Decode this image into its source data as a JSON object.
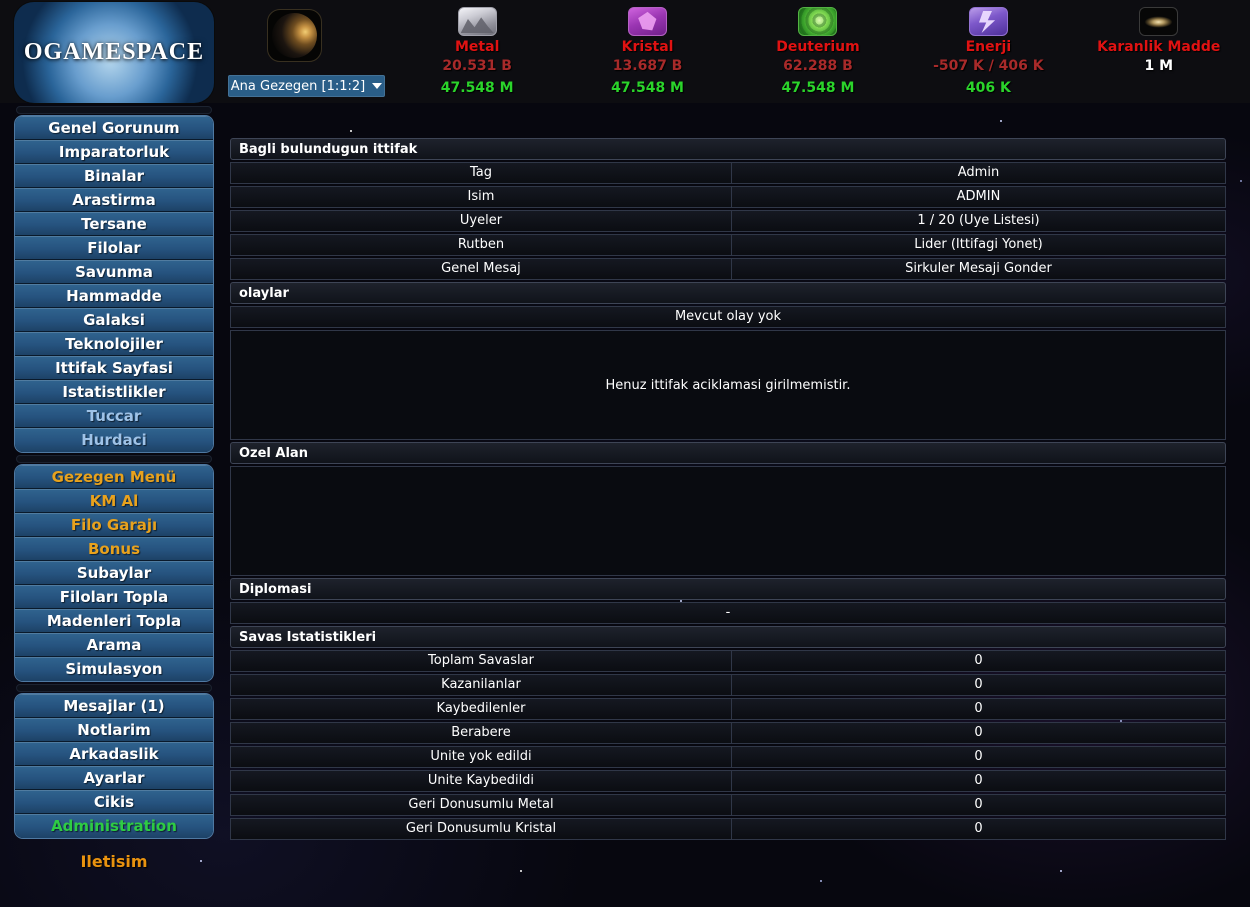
{
  "colors": {
    "resource_label_red": "#e01212",
    "resource_value_red": "#a82a2a",
    "resource_value_green": "#2bd42b",
    "sidebar_white": "#ffffff",
    "sidebar_lightblue": "#9fc3e8",
    "sidebar_orange": "#e8a21d",
    "sidebar_green": "#2ecc44",
    "footer_orange": "#e8920f"
  },
  "header": {
    "logo_text": "OGAMESPACE",
    "planet_select": {
      "value": "Ana Gezegen [1:1:2]"
    },
    "resources": [
      {
        "key": "metal",
        "icon": "metal-icon",
        "icon_class": "icon-metal",
        "name": "Metal",
        "value_red": "20.531 B",
        "value_green": "47.548 M"
      },
      {
        "key": "kristal",
        "icon": "crystal-icon",
        "icon_class": "icon-crystal",
        "name": "Kristal",
        "value_red": "13.687 B",
        "value_green": "47.548 M"
      },
      {
        "key": "deuterium",
        "icon": "deuterium-icon",
        "icon_class": "icon-deuterium",
        "name": "Deuterium",
        "value_red": "62.288 B",
        "value_green": "47.548 M"
      },
      {
        "key": "enerji",
        "icon": "energy-icon",
        "icon_class": "icon-energy",
        "name": "Enerji",
        "value_red": "-507 K / 406 K",
        "value_green": "406 K"
      },
      {
        "key": "karanlik-madde",
        "icon": "dark-matter-icon",
        "icon_class": "icon-dark",
        "name": "Karanlik Madde",
        "value_white": "1 M"
      }
    ]
  },
  "sidebar": {
    "groups": [
      {
        "items": [
          {
            "label": "Genel Gorunum",
            "color": "#ffffff"
          },
          {
            "label": "Imparatorluk",
            "color": "#ffffff"
          },
          {
            "label": "Binalar",
            "color": "#ffffff"
          },
          {
            "label": "Arastirma",
            "color": "#ffffff"
          },
          {
            "label": "Tersane",
            "color": "#ffffff"
          },
          {
            "label": "Filolar",
            "color": "#ffffff"
          },
          {
            "label": "Savunma",
            "color": "#ffffff"
          },
          {
            "label": "Hammadde",
            "color": "#ffffff"
          },
          {
            "label": "Galaksi",
            "color": "#ffffff"
          },
          {
            "label": "Teknolojiler",
            "color": "#ffffff"
          },
          {
            "label": "Ittifak Sayfasi",
            "color": "#ffffff"
          },
          {
            "label": "Istatistlikler",
            "color": "#ffffff"
          },
          {
            "label": "Tuccar",
            "color": "#9fc3e8"
          },
          {
            "label": "Hurdaci",
            "color": "#9fc3e8"
          }
        ]
      },
      {
        "items": [
          {
            "label": "Gezegen Menü",
            "color": "#e8a21d"
          },
          {
            "label": "KM Al",
            "color": "#e8a21d"
          },
          {
            "label": "Filo Garajı",
            "color": "#e8a21d"
          },
          {
            "label": "Bonus",
            "color": "#e8a21d"
          },
          {
            "label": "Subaylar",
            "color": "#ffffff"
          },
          {
            "label": "Filoları Topla",
            "color": "#ffffff"
          },
          {
            "label": "Madenleri Topla",
            "color": "#ffffff"
          },
          {
            "label": "Arama",
            "color": "#ffffff"
          },
          {
            "label": "Simulasyon",
            "color": "#ffffff"
          }
        ]
      },
      {
        "items": [
          {
            "label": "Mesajlar (1)",
            "color": "#ffffff"
          },
          {
            "label": "Notlarim",
            "color": "#ffffff"
          },
          {
            "label": "Arkadaslik",
            "color": "#ffffff"
          },
          {
            "label": "Ayarlar",
            "color": "#ffffff"
          },
          {
            "label": "Cikis",
            "color": "#ffffff"
          },
          {
            "label": "Administration",
            "color": "#2ecc44"
          }
        ]
      }
    ],
    "footer_link": "Iletisim"
  },
  "main": {
    "alliance": {
      "title": "Bagli bulundugun ittifak",
      "rows": [
        {
          "label": "Tag",
          "value": "Admin"
        },
        {
          "label": "Isim",
          "value": "ADMIN"
        },
        {
          "label": "Uyeler",
          "value": "1 / 20 (Uye Listesi)"
        },
        {
          "label": "Rutben",
          "value": "Lider (Ittifagi Yonet)"
        },
        {
          "label": "Genel Mesaj",
          "value": "Sirkuler Mesaji Gonder"
        }
      ]
    },
    "events": {
      "title": "olaylar",
      "empty_row": "Mevcut olay yok",
      "description": "Henuz ittifak aciklamasi girilmemistir."
    },
    "custom_area": {
      "title": "Ozel Alan",
      "content": ""
    },
    "diplomacy": {
      "title": "Diplomasi",
      "content": "-"
    },
    "war_stats": {
      "title": "Savas Istatistikleri",
      "rows": [
        {
          "label": "Toplam Savaslar",
          "value": "0"
        },
        {
          "label": "Kazanilanlar",
          "value": "0"
        },
        {
          "label": "Kaybedilenler",
          "value": "0"
        },
        {
          "label": "Berabere",
          "value": "0"
        },
        {
          "label": "Unite yok edildi",
          "value": "0"
        },
        {
          "label": "Unite Kaybedildi",
          "value": "0"
        },
        {
          "label": "Geri Donusumlu Metal",
          "value": "0"
        },
        {
          "label": "Geri Donusumlu Kristal",
          "value": "0"
        }
      ]
    }
  }
}
